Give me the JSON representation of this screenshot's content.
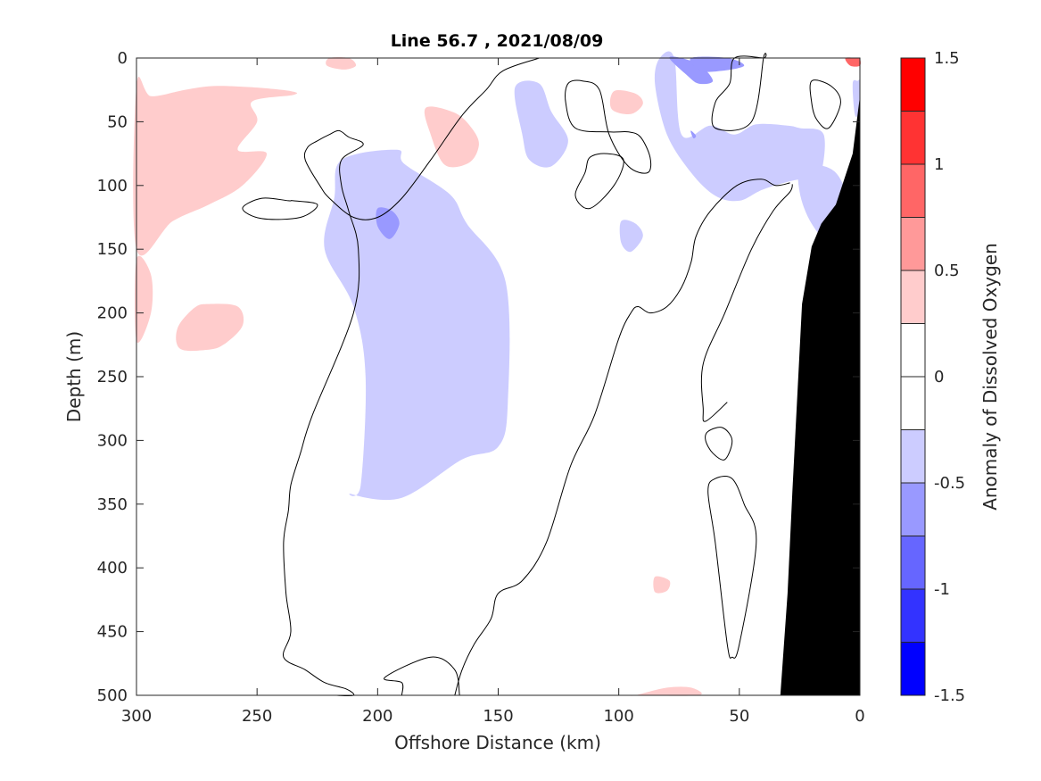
{
  "chart_data": {
    "type": "heatmap",
    "title": "Line 56.7 , 2021/08/09",
    "xlabel": "Offshore Distance (km)",
    "ylabel": "Depth (m)",
    "colorbar_label": "Anomaly of Dissolved Oxygen",
    "xlim": [
      300,
      0
    ],
    "ylim": [
      0,
      500
    ],
    "x_ticks": [
      300,
      250,
      200,
      150,
      100,
      50,
      0
    ],
    "y_ticks": [
      0,
      50,
      100,
      150,
      200,
      250,
      300,
      350,
      400,
      450,
      500
    ],
    "colorbar_ticks": [
      1.5,
      1,
      0.5,
      0,
      -0.5,
      -1,
      -1.5
    ],
    "colorbar_tick_labels": [
      "1.5",
      "1",
      "0.5",
      "0",
      "-0.5",
      "-1",
      "-1.5"
    ],
    "colorbar_range": [
      -1.5,
      1.5
    ],
    "colorbar_levels": [
      1.5,
      1.25,
      1.0,
      0.75,
      0.5,
      0.25,
      0.0,
      -0.25,
      -0.5,
      -0.75,
      -1.0,
      -1.25,
      -1.5
    ],
    "colorbar_colors": [
      "#ff0000",
      "#ff3333",
      "#ff6666",
      "#ff9999",
      "#ffcccc",
      "#ffffff",
      "#ffffff",
      "#ccccff",
      "#9999ff",
      "#6666ff",
      "#3333ff",
      "#0000ff"
    ],
    "anomaly_regions": [
      {
        "level": 0.75,
        "color": "#ff9999",
        "x": [
          300,
          296,
          290,
          283,
          275,
          266,
          262,
          262,
          268,
          278,
          288,
          298,
          300
        ],
        "y": [
          67,
          60,
          45,
          36,
          33,
          35,
          45,
          62,
          75,
          85,
          97,
          105,
          105
        ]
      },
      {
        "level": 0.5,
        "color": "#ffcccc",
        "x": [
          300,
          294,
          280,
          268,
          252,
          236,
          235,
          252,
          250,
          258,
          246,
          256,
          270,
          285,
          300
        ],
        "y": [
          22,
          30,
          25,
          22,
          23,
          26,
          29,
          34,
          50,
          72,
          75,
          100,
          115,
          128,
          150
        ]
      },
      {
        "level": 0.5,
        "color": "#ffcccc",
        "x": [
          300,
          294,
          294,
          300
        ],
        "y": [
          158,
          170,
          200,
          222
        ]
      },
      {
        "level": 0.5,
        "color": "#ffcccc",
        "x": [
          270,
          258,
          256,
          264,
          271,
          282,
          283,
          276
        ],
        "y": [
          193,
          195,
          210,
          225,
          229,
          228,
          212,
          196
        ]
      },
      {
        "level": 0.5,
        "color": "#ffcccc",
        "x": [
          180,
          168,
          161,
          158,
          162,
          172,
          178
        ],
        "y": [
          39,
          43,
          55,
          68,
          82,
          84,
          60
        ]
      },
      {
        "level": 0.5,
        "color": "#ffcccc",
        "x": [
          220,
          212,
          209,
          214,
          221
        ],
        "y": [
          0,
          0,
          6,
          9,
          6
        ]
      },
      {
        "level": 0.5,
        "color": "#ffcccc",
        "x": [
          102,
          93,
          90,
          95,
          103
        ],
        "y": [
          26,
          28,
          36,
          44,
          40
        ]
      },
      {
        "level": 0.5,
        "color": "#ffcccc",
        "x": [
          85,
          79,
          80,
          85
        ],
        "y": [
          407,
          410,
          418,
          419
        ]
      },
      {
        "level": 0.5,
        "color": "#ffcccc",
        "x": [
          93,
          80,
          70,
          67,
          93
        ],
        "y": [
          500,
          494,
          494,
          500,
          500
        ]
      },
      {
        "level": 1.0,
        "color": "#ff6666",
        "x": [
          6,
          1,
          0,
          0,
          4
        ],
        "y": [
          0,
          0,
          0,
          6,
          6
        ]
      },
      {
        "level": -0.5,
        "color": "#ccccff",
        "x": [
          192,
          215,
          218,
          222,
          210,
          205,
          207,
          211,
          190,
          165,
          150,
          146,
          147,
          163,
          170,
          189
        ],
        "y": [
          72,
          80,
          110,
          150,
          195,
          250,
          335,
          342,
          345,
          315,
          305,
          270,
          175,
          130,
          107,
          83
        ]
      },
      {
        "level": -0.5,
        "color": "#ccccff",
        "x": [
          133,
          143,
          140,
          137,
          128,
          121,
          128
        ],
        "y": [
          20,
          23,
          60,
          80,
          85,
          65,
          42
        ]
      },
      {
        "level": -0.5,
        "color": "#ccccff",
        "x": [
          83,
          85,
          80,
          70,
          60,
          50,
          40,
          25,
          17,
          15,
          25,
          30,
          43,
          52,
          62,
          74,
          77
        ],
        "y": [
          0,
          20,
          60,
          90,
          108,
          112,
          103,
          95,
          95,
          60,
          55,
          53,
          52,
          60,
          53,
          60,
          0
        ]
      },
      {
        "level": -0.5,
        "color": "#ccccff",
        "x": [
          99,
          93,
          90,
          95,
          99
        ],
        "y": [
          128,
          130,
          140,
          152,
          145
        ]
      },
      {
        "level": -0.5,
        "color": "#ccccff",
        "x": [
          24,
          10,
          3,
          10,
          20,
          25
        ],
        "y": [
          85,
          90,
          127,
          150,
          130,
          105
        ]
      },
      {
        "level": -0.5,
        "color": "#ccccff",
        "x": [
          3,
          1,
          0,
          0,
          2
        ],
        "y": [
          20,
          18,
          19,
          40,
          45
        ]
      },
      {
        "level": -0.75,
        "color": "#9999ff",
        "x": [
          200,
          194,
          191,
          195,
          200
        ],
        "y": [
          118,
          120,
          130,
          142,
          132
        ]
      },
      {
        "level": -0.75,
        "color": "#9999ff",
        "x": [
          79,
          74,
          66,
          61,
          67,
          72
        ],
        "y": [
          0,
          0,
          6,
          18,
          20,
          13
        ]
      },
      {
        "level": -0.75,
        "color": "#9999ff",
        "x": [
          70,
          55,
          48,
          57,
          66
        ],
        "y": [
          0,
          0,
          6,
          10,
          10
        ]
      },
      {
        "level": -0.75,
        "color": "#9999ff",
        "x": [
          70,
          68,
          69,
          70
        ],
        "y": [
          57,
          61,
          63,
          59
        ]
      }
    ],
    "zero_contours": [
      {
        "closed": false,
        "x": [
          133,
          148,
          155,
          165,
          178,
          190,
          200,
          210,
          220,
          224,
          230,
          229,
          225,
          220,
          216,
          212,
          206,
          215,
          215,
          212,
          208,
          210,
          227,
          232,
          236,
          237,
          239,
          238,
          236,
          239,
          230,
          222,
          213,
          210,
          217,
          212
        ],
        "y": [
          0,
          10,
          25,
          45,
          80,
          110,
          125,
          125,
          110,
          100,
          80,
          70,
          65,
          60,
          57,
          62,
          68,
          80,
          100,
          120,
          150,
          200,
          280,
          310,
          335,
          355,
          380,
          420,
          450,
          470,
          480,
          490,
          495,
          500,
          500,
          500
        ]
      },
      {
        "closed": false,
        "x": [
          190,
          190,
          197,
          178,
          168,
          166
        ],
        "y": [
          500,
          490,
          486,
          470,
          480,
          500
        ]
      },
      {
        "closed": false,
        "x": [
          168,
          165,
          160,
          153,
          150,
          140,
          130,
          120,
          110,
          100,
          95,
          92,
          87,
          80,
          74,
          70,
          68,
          62,
          51,
          41,
          35,
          29
        ],
        "y": [
          500,
          480,
          460,
          440,
          420,
          410,
          380,
          320,
          280,
          220,
          200,
          195,
          200,
          195,
          180,
          160,
          140,
          120,
          100,
          95,
          100,
          98
        ]
      },
      {
        "closed": false,
        "x": [
          28,
          29,
          36,
          45,
          56,
          65,
          65,
          64,
          55
        ],
        "y": [
          99,
          105,
          120,
          150,
          200,
          240,
          275,
          285,
          270
        ]
      },
      {
        "closed": true,
        "x": [
          40,
          52,
          54,
          60,
          60,
          45,
          40
        ],
        "y": [
          0,
          0,
          20,
          35,
          55,
          50,
          0
        ]
      },
      {
        "closed": true,
        "x": [
          108,
          115,
          121,
          122,
          118,
          104,
          96,
          91,
          87,
          88,
          96,
          104
        ],
        "y": [
          25,
          18,
          20,
          35,
          55,
          58,
          58,
          62,
          78,
          90,
          85,
          60
        ]
      },
      {
        "closed": true,
        "x": [
          235,
          225,
          232,
          248,
          256,
          248,
          237
        ],
        "y": [
          112,
          115,
          125,
          126,
          118,
          110,
          112
        ]
      },
      {
        "closed": true,
        "x": [
          63,
          57,
          53,
          56,
          61,
          64
        ],
        "y": [
          293,
          290,
          300,
          315,
          310,
          300
        ]
      },
      {
        "closed": true,
        "x": [
          60,
          53,
          48,
          43,
          50,
          53,
          55,
          60,
          63
        ],
        "y": [
          330,
          330,
          350,
          380,
          460,
          470,
          460,
          380,
          340
        ]
      },
      {
        "closed": true,
        "x": [
          112,
          105,
          98,
          102,
          112,
          118,
          114
        ],
        "y": [
          78,
          75,
          80,
          100,
          118,
          108,
          90
        ]
      },
      {
        "closed": true,
        "x": [
          20,
          12,
          8,
          13,
          18,
          20
        ],
        "y": [
          18,
          22,
          35,
          55,
          48,
          35
        ]
      }
    ],
    "bathymetry": {
      "color": "#000000",
      "x": [
        0,
        0,
        3,
        10,
        16,
        20,
        24,
        28,
        30,
        33,
        0
      ],
      "y": [
        500,
        30,
        75,
        115,
        130,
        148,
        193,
        340,
        420,
        500,
        500
      ]
    }
  }
}
